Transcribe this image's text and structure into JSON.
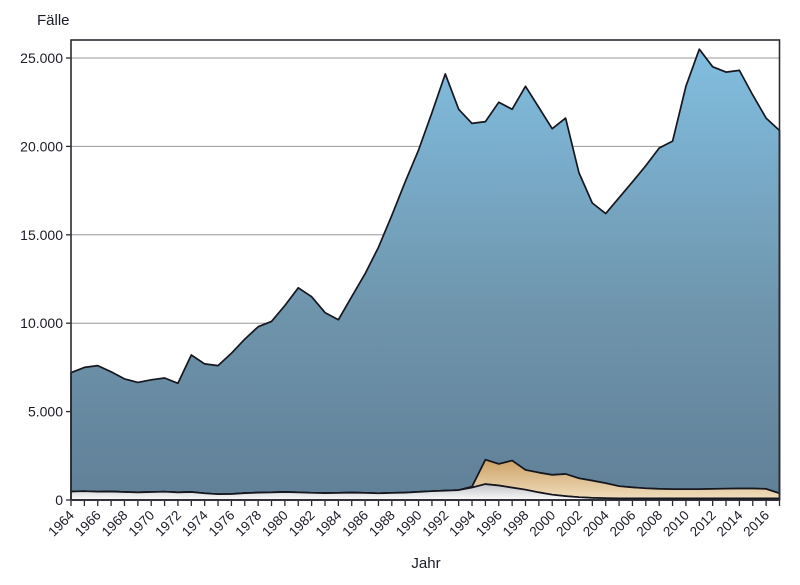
{
  "chart_data": {
    "type": "area",
    "stacked": true,
    "title": "",
    "xlabel": "Jahr",
    "ylabel": "Fälle",
    "legend": "none",
    "grid": "horizontal",
    "ylim": [
      0,
      26000
    ],
    "y_ticks": [
      0,
      5000,
      10000,
      15000,
      20000,
      25000
    ],
    "y_tick_labels": [
      "0",
      "5.000",
      "10.000",
      "15.000",
      "20.000",
      "25.000"
    ],
    "x_tick_labels": [
      "1964",
      "1966",
      "1968",
      "1970",
      "1972",
      "1974",
      "1976",
      "1978",
      "1980",
      "1982",
      "1984",
      "1986",
      "1988",
      "1990",
      "1992",
      "1994",
      "1996",
      "1998",
      "2000",
      "2002",
      "2004",
      "2006",
      "2008",
      "2010",
      "2012",
      "2014",
      "2016"
    ],
    "x": [
      1964,
      1965,
      1966,
      1967,
      1968,
      1969,
      1970,
      1971,
      1972,
      1973,
      1974,
      1975,
      1976,
      1977,
      1978,
      1979,
      1980,
      1981,
      1982,
      1983,
      1984,
      1985,
      1986,
      1987,
      1988,
      1989,
      1990,
      1991,
      1992,
      1993,
      1994,
      1995,
      1996,
      1997,
      1998,
      1999,
      2000,
      2001,
      2002,
      2003,
      2004,
      2005,
      2006,
      2007,
      2008,
      2009,
      2010,
      2011,
      2012,
      2013,
      2014,
      2015,
      2016,
      2017
    ],
    "series": [
      {
        "name": "gray-band",
        "color_top": "#bdbfc3",
        "color_bottom": "#fbfbfb",
        "stroke": "#16161f",
        "values": [
          480,
          500,
          470,
          480,
          450,
          430,
          450,
          470,
          430,
          450,
          380,
          330,
          340,
          390,
          420,
          430,
          450,
          430,
          410,
          390,
          400,
          420,
          400,
          380,
          400,
          420,
          460,
          500,
          530,
          560,
          700,
          900,
          820,
          700,
          580,
          430,
          300,
          220,
          160,
          120,
          100,
          90,
          90,
          90,
          90,
          90,
          90,
          90,
          90,
          90,
          90,
          90,
          90,
          90
        ]
      },
      {
        "name": "orange-band",
        "color_top": "#c89a5c",
        "color_bottom": "#f4e4c6",
        "stroke": "#16161f",
        "values": [
          0,
          0,
          0,
          0,
          0,
          0,
          0,
          0,
          0,
          0,
          0,
          0,
          0,
          0,
          0,
          0,
          0,
          0,
          0,
          0,
          0,
          0,
          0,
          0,
          0,
          0,
          0,
          0,
          0,
          0,
          50,
          1380,
          1220,
          1530,
          1120,
          1120,
          1120,
          1250,
          1070,
          980,
          850,
          690,
          620,
          570,
          540,
          520,
          520,
          520,
          540,
          550,
          560,
          560,
          540,
          290
        ]
      },
      {
        "name": "blue-band",
        "color_top": "#82bfe2",
        "color_mid": "#6e94ab",
        "color_bottom": "#608097",
        "stroke": "#16161f",
        "values": [
          6720,
          7000,
          7130,
          6770,
          6400,
          6220,
          6350,
          6430,
          6170,
          7750,
          7320,
          7270,
          7960,
          8710,
          9380,
          9670,
          10550,
          11570,
          11090,
          10210,
          9800,
          11080,
          12400,
          13920,
          15700,
          17580,
          19340,
          21400,
          23570,
          21540,
          20550,
          19120,
          20460,
          19870,
          21700,
          20650,
          19580,
          20130,
          17270,
          15700,
          15250,
          16320,
          17290,
          18250,
          19280,
          19690,
          22790,
          24890,
          23870,
          23560,
          23650,
          22250,
          20970,
          20520
        ]
      }
    ]
  }
}
